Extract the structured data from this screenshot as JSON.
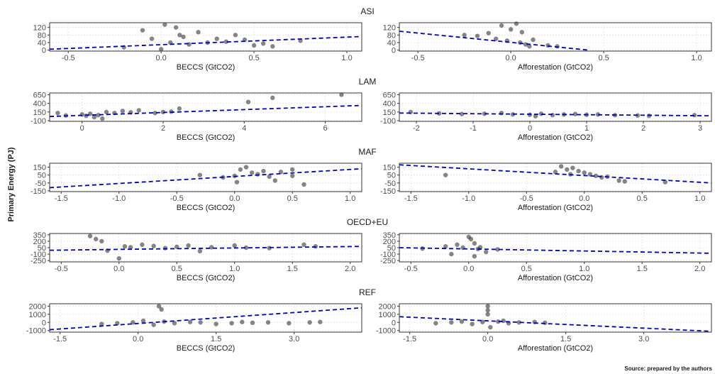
{
  "figure": {
    "ylabel": "Primary Energy (PJ)",
    "source": "Source: prepared by the authors"
  },
  "style": {
    "point_color": "#333333",
    "fit_color": "#0000cc",
    "grid_color": "#e6e6e6",
    "frame_color": "#333333"
  },
  "chart_data": [
    {
      "type": "scatter",
      "region": "ASI",
      "title": "ASI",
      "xlabel": "BECCS (GtCO2)",
      "xlim": [
        -0.6,
        1.08
      ],
      "ylim": [
        -5,
        145
      ],
      "xticks": [
        -0.5,
        0.0,
        0.5,
        1.0
      ],
      "xtick_labels": [
        "-0.5",
        "0.0",
        "0.5",
        "1.0"
      ],
      "yticks": [
        0,
        40,
        80,
        120
      ],
      "ytick_labels": [
        "0",
        "40",
        "80",
        "120"
      ],
      "fit": [
        [
          -0.6,
          5
        ],
        [
          1.08,
          72
        ]
      ],
      "points": [
        [
          -0.1,
          105
        ],
        [
          -0.2,
          15
        ],
        [
          0.0,
          5
        ],
        [
          0.05,
          40
        ],
        [
          0.1,
          80
        ],
        [
          0.15,
          30
        ],
        [
          0.2,
          95
        ],
        [
          0.3,
          60
        ],
        [
          0.35,
          45
        ],
        [
          0.45,
          55
        ],
        [
          0.55,
          35
        ],
        [
          0.6,
          20
        ],
        [
          0.75,
          50
        ],
        [
          -0.05,
          60
        ],
        [
          0.02,
          135
        ],
        [
          0.08,
          120
        ],
        [
          0.12,
          70
        ],
        [
          0.25,
          40
        ],
        [
          0.4,
          80
        ],
        [
          0.5,
          25
        ]
      ]
    },
    {
      "type": "scatter",
      "region": "ASI",
      "title": "",
      "xlabel": "Afforestation (GtCO2)",
      "xlim": [
        -0.6,
        1.08
      ],
      "ylim": [
        -5,
        145
      ],
      "xticks": [
        -0.5,
        0.0,
        0.5,
        1.0
      ],
      "xtick_labels": [
        "-0.5",
        "0.0",
        "0.5",
        "1.0"
      ],
      "yticks": [
        0,
        40,
        80,
        120
      ],
      "ytick_labels": [
        "0",
        "40",
        "80",
        "120"
      ],
      "fit": [
        [
          -0.6,
          100
        ],
        [
          0.42,
          0
        ]
      ],
      "points": [
        [
          -0.25,
          80
        ],
        [
          -0.18,
          75
        ],
        [
          -0.12,
          90
        ],
        [
          -0.08,
          60
        ],
        [
          -0.05,
          130
        ],
        [
          0.0,
          110
        ],
        [
          0.03,
          140
        ],
        [
          0.05,
          40
        ],
        [
          0.08,
          30
        ],
        [
          0.1,
          20
        ],
        [
          0.12,
          55
        ],
        [
          0.2,
          25
        ],
        [
          0.25,
          20
        ],
        [
          -0.02,
          50
        ],
        [
          0.06,
          95
        ]
      ]
    },
    {
      "type": "scatter",
      "region": "LAM",
      "title": "LAM",
      "xlabel": "BECCS (GtCO2)",
      "xlim": [
        -0.8,
        6.9
      ],
      "ylim": [
        -120,
        700
      ],
      "xticks": [
        0,
        2,
        4,
        6
      ],
      "xtick_labels": [
        "0",
        "2",
        "4",
        "6"
      ],
      "yticks": [
        -100,
        150,
        400,
        650
      ],
      "ytick_labels": [
        "-100",
        "150",
        "400",
        "650"
      ],
      "fit": [
        [
          -0.8,
          20
        ],
        [
          6.9,
          340
        ]
      ],
      "points": [
        [
          -0.6,
          120
        ],
        [
          -0.4,
          50
        ],
        [
          0.0,
          80
        ],
        [
          0.2,
          100
        ],
        [
          0.4,
          60
        ],
        [
          0.6,
          150
        ],
        [
          0.8,
          120
        ],
        [
          1.0,
          180
        ],
        [
          1.2,
          140
        ],
        [
          1.4,
          200
        ],
        [
          1.8,
          120
        ],
        [
          2.0,
          150
        ],
        [
          2.2,
          160
        ],
        [
          2.4,
          250
        ],
        [
          4.1,
          440
        ],
        [
          4.7,
          560
        ],
        [
          6.4,
          650
        ],
        [
          0.3,
          0
        ],
        [
          0.5,
          -40
        ],
        [
          0.1,
          40
        ]
      ]
    },
    {
      "type": "scatter",
      "region": "LAM",
      "title": "",
      "xlabel": "Afforestation (GtCO2)",
      "xlim": [
        -2.3,
        3.2
      ],
      "ylim": [
        -120,
        700
      ],
      "xticks": [
        -2,
        -1,
        0,
        1,
        2,
        3
      ],
      "xtick_labels": [
        "-2",
        "-1",
        "0",
        "1",
        "2",
        "3"
      ],
      "yticks": [
        -100,
        150,
        400,
        650
      ],
      "ytick_labels": [
        "-100",
        "150",
        "400",
        "650"
      ],
      "fit": [
        [
          -2.3,
          120
        ],
        [
          3.2,
          40
        ]
      ],
      "points": [
        [
          -2.1,
          150
        ],
        [
          -1.6,
          110
        ],
        [
          -1.2,
          90
        ],
        [
          -0.8,
          100
        ],
        [
          -0.5,
          120
        ],
        [
          -0.3,
          80
        ],
        [
          0.0,
          70
        ],
        [
          0.2,
          100
        ],
        [
          0.4,
          60
        ],
        [
          0.6,
          80
        ],
        [
          0.8,
          90
        ],
        [
          1.0,
          70
        ],
        [
          1.2,
          80
        ],
        [
          1.5,
          60
        ],
        [
          1.9,
          50
        ],
        [
          2.1,
          40
        ],
        [
          2.9,
          60
        ],
        [
          0.1,
          30
        ]
      ]
    },
    {
      "type": "scatter",
      "region": "MAF",
      "title": "MAF",
      "xlabel": "BECCS (GtCO2)",
      "xlim": [
        -1.6,
        1.1
      ],
      "ylim": [
        -160,
        200
      ],
      "xticks": [
        -1.5,
        -1.0,
        -0.5,
        0.0,
        0.5,
        1.0
      ],
      "xtick_labels": [
        "-1.5",
        "-1.0",
        "-0.5",
        "0.0",
        "0.5",
        "1.0"
      ],
      "yticks": [
        -150,
        -50,
        50,
        150
      ],
      "ytick_labels": [
        "-150",
        "-50",
        "50",
        "150"
      ],
      "fit": [
        [
          -1.6,
          -110
        ],
        [
          1.1,
          130
        ]
      ],
      "points": [
        [
          -0.3,
          50
        ],
        [
          -0.1,
          20
        ],
        [
          0.0,
          40
        ],
        [
          0.05,
          120
        ],
        [
          0.1,
          150
        ],
        [
          0.15,
          80
        ],
        [
          0.2,
          60
        ],
        [
          0.25,
          100
        ],
        [
          0.3,
          30
        ],
        [
          0.35,
          -20
        ],
        [
          0.4,
          90
        ],
        [
          0.5,
          40
        ],
        [
          0.6,
          -70
        ],
        [
          0.5,
          120
        ],
        [
          0.02,
          -40
        ]
      ]
    },
    {
      "type": "scatter",
      "region": "MAF",
      "title": "",
      "xlabel": "Afforestation (GtCO2)",
      "xlim": [
        -1.6,
        1.1
      ],
      "ylim": [
        -160,
        200
      ],
      "xticks": [
        -1.5,
        -1.0,
        -0.5,
        0.0,
        0.5,
        1.0
      ],
      "xtick_labels": [
        "-1.5",
        "-1.0",
        "-0.5",
        "0.0",
        "0.5",
        "1.0"
      ],
      "yticks": [
        -150,
        -50,
        50,
        150
      ],
      "ytick_labels": [
        "-150",
        "-50",
        "50",
        "150"
      ],
      "fit": [
        [
          -1.6,
          180
        ],
        [
          1.1,
          -50
        ]
      ],
      "points": [
        [
          -1.2,
          50
        ],
        [
          -0.25,
          90
        ],
        [
          -0.2,
          160
        ],
        [
          -0.15,
          120
        ],
        [
          -0.1,
          140
        ],
        [
          -0.05,
          100
        ],
        [
          0.0,
          80
        ],
        [
          0.05,
          60
        ],
        [
          0.1,
          40
        ],
        [
          0.15,
          20
        ],
        [
          0.2,
          30
        ],
        [
          0.3,
          -20
        ],
        [
          0.35,
          -30
        ],
        [
          0.7,
          -40
        ],
        [
          -0.12,
          60
        ]
      ]
    },
    {
      "type": "scatter",
      "region": "OECD+EU",
      "title": "OECD+EU",
      "xlabel": "BECCS (GtCO2)",
      "xlim": [
        -0.6,
        2.1
      ],
      "ylim": [
        -280,
        380
      ],
      "xticks": [
        -0.5,
        0.0,
        0.5,
        1.0,
        1.5,
        2.0
      ],
      "xtick_labels": [
        "-0.5",
        "0.0",
        "0.5",
        "1.0",
        "1.5",
        "2.0"
      ],
      "yticks": [
        -250,
        -100,
        50,
        200,
        350
      ],
      "ytick_labels": [
        "-250",
        "-100",
        "50",
        "200",
        "350"
      ],
      "fit": [
        [
          -0.6,
          -10
        ],
        [
          2.1,
          80
        ]
      ],
      "points": [
        [
          -0.25,
          320
        ],
        [
          -0.2,
          250
        ],
        [
          -0.15,
          200
        ],
        [
          -0.1,
          -20
        ],
        [
          0.0,
          -200
        ],
        [
          0.05,
          80
        ],
        [
          0.1,
          60
        ],
        [
          0.2,
          120
        ],
        [
          0.3,
          90
        ],
        [
          0.4,
          40
        ],
        [
          0.5,
          70
        ],
        [
          0.6,
          100
        ],
        [
          0.7,
          -30
        ],
        [
          0.8,
          60
        ],
        [
          1.0,
          100
        ],
        [
          1.1,
          50
        ],
        [
          1.3,
          40
        ],
        [
          1.6,
          120
        ],
        [
          1.7,
          80
        ]
      ]
    },
    {
      "type": "scatter",
      "region": "OECD+EU",
      "title": "",
      "xlabel": "Afforestation (GtCO2)",
      "xlim": [
        -0.6,
        2.1
      ],
      "ylim": [
        -280,
        380
      ],
      "xticks": [
        -0.5,
        0.0,
        0.5,
        1.0,
        1.5,
        2.0
      ],
      "xtick_labels": [
        "-0.5",
        "0.0",
        "0.5",
        "1.0",
        "1.5",
        "2.0"
      ],
      "yticks": [
        -250,
        -100,
        50,
        200,
        350
      ],
      "ytick_labels": [
        "-250",
        "-100",
        "50",
        "200",
        "350"
      ],
      "fit": [
        [
          -0.6,
          50
        ],
        [
          2.1,
          -80
        ]
      ],
      "points": [
        [
          -0.4,
          30
        ],
        [
          -0.2,
          80
        ],
        [
          -0.15,
          -100
        ],
        [
          -0.1,
          120
        ],
        [
          -0.05,
          50
        ],
        [
          0.0,
          300
        ],
        [
          0.02,
          250
        ],
        [
          0.05,
          -150
        ],
        [
          0.08,
          20
        ],
        [
          0.1,
          60
        ],
        [
          0.15,
          -50
        ],
        [
          0.25,
          10
        ],
        [
          0.05,
          150
        ]
      ]
    },
    {
      "type": "scatter",
      "region": "REF",
      "title": "REF",
      "xlabel": "BECCS (GtCO2)",
      "xlim": [
        -1.7,
        4.3
      ],
      "ylim": [
        -1200,
        2300
      ],
      "xticks": [
        -1.5,
        0.0,
        1.5,
        3.0
      ],
      "xtick_labels": [
        "-1.5",
        "0.0",
        "1.5",
        "3.0"
      ],
      "yticks": [
        -1000,
        0,
        1000,
        2000
      ],
      "ytick_labels": [
        "-1000",
        "0",
        "1000",
        "2000"
      ],
      "fit": [
        [
          -1.7,
          -900
        ],
        [
          4.3,
          1800
        ]
      ],
      "points": [
        [
          -0.7,
          -200
        ],
        [
          -0.4,
          -100
        ],
        [
          -0.1,
          0
        ],
        [
          0.1,
          200
        ],
        [
          0.3,
          -300
        ],
        [
          0.4,
          2000
        ],
        [
          0.45,
          1600
        ],
        [
          0.5,
          100
        ],
        [
          0.7,
          -100
        ],
        [
          1.0,
          50
        ],
        [
          1.2,
          0
        ],
        [
          1.5,
          -200
        ],
        [
          1.8,
          -100
        ],
        [
          2.0,
          50
        ],
        [
          2.2,
          -50
        ],
        [
          2.5,
          0
        ],
        [
          2.9,
          -100
        ],
        [
          3.3,
          0
        ],
        [
          3.5,
          50
        ]
      ]
    },
    {
      "type": "scatter",
      "region": "REF",
      "title": "",
      "xlabel": "Afforestation (GtCO2)",
      "xlim": [
        -1.7,
        4.3
      ],
      "ylim": [
        -1200,
        2300
      ],
      "xticks": [
        -1.5,
        0.0,
        1.5,
        3.0
      ],
      "xtick_labels": [
        "-1.5",
        "0.0",
        "1.5",
        "3.0"
      ],
      "yticks": [
        -1000,
        0,
        1000,
        2000
      ],
      "ytick_labels": [
        "-1000",
        "0",
        "1000",
        "2000"
      ],
      "fit": [
        [
          -1.7,
          700
        ],
        [
          4.3,
          -1100
        ]
      ],
      "points": [
        [
          -1.0,
          -100
        ],
        [
          -0.7,
          0
        ],
        [
          -0.5,
          100
        ],
        [
          -0.3,
          -200
        ],
        [
          -0.1,
          50
        ],
        [
          0.0,
          2000
        ],
        [
          0.0,
          1500
        ],
        [
          0.0,
          1000
        ],
        [
          0.05,
          -600
        ],
        [
          0.2,
          100
        ],
        [
          0.4,
          -100
        ],
        [
          0.6,
          0
        ],
        [
          0.9,
          50
        ],
        [
          1.1,
          -50
        ],
        [
          0.3,
          200
        ]
      ]
    }
  ]
}
